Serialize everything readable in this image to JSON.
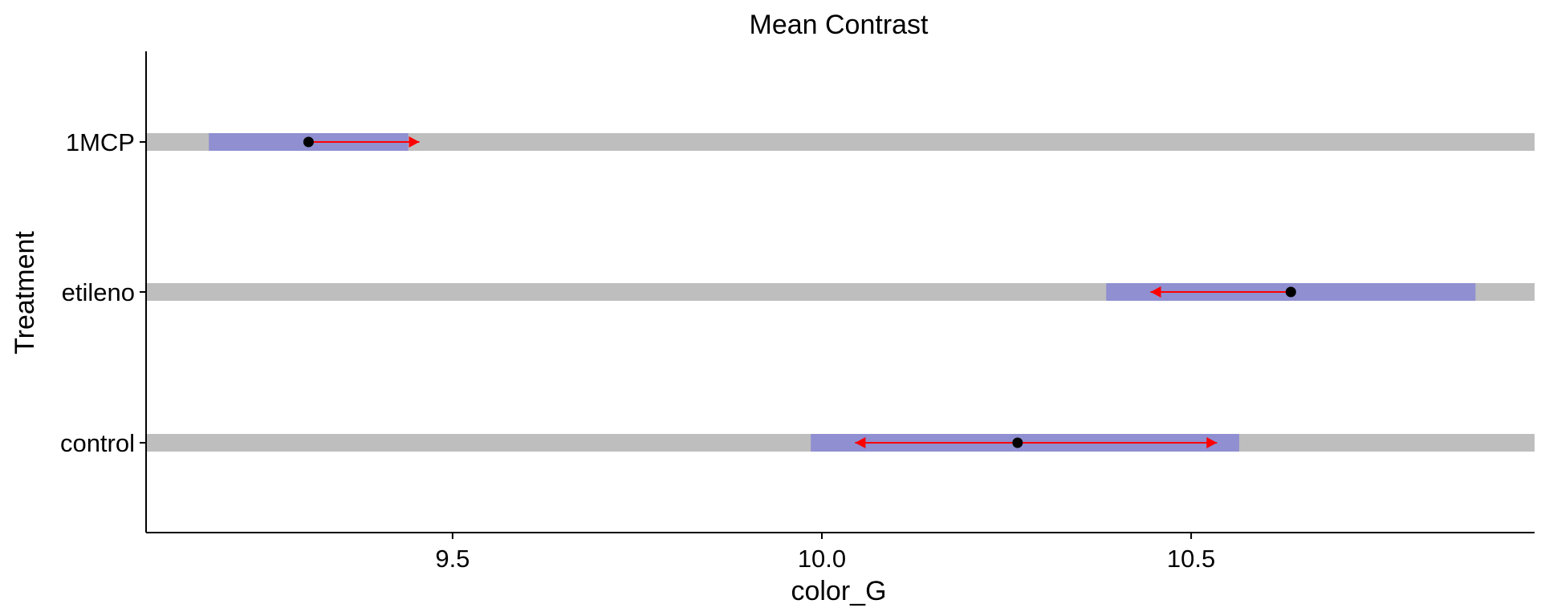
{
  "chart_data": {
    "type": "interval",
    "title": "Mean Contrast",
    "xlabel": "color_G",
    "ylabel": "Treatment",
    "xlim": [
      9.085,
      10.965
    ],
    "xticks": [
      9.5,
      10.0,
      10.5
    ],
    "xtick_labels": [
      "9.5",
      "10.0",
      "10.5"
    ],
    "categories": [
      "1MCP",
      "etileno",
      "control"
    ],
    "grid": false,
    "colors": {
      "band": "#bebebe",
      "ci": "#8f8fd1",
      "arrow": "#ff0000",
      "point": "#000000"
    },
    "series": [
      {
        "category": "1MCP",
        "mean": 9.305,
        "ci_low": 9.17,
        "ci_high": 9.44,
        "arrow_from": 9.305,
        "arrow_to": 9.455
      },
      {
        "category": "etileno",
        "mean": 10.635,
        "ci_low": 10.385,
        "ci_high": 10.885,
        "arrow_from": 10.635,
        "arrow_to": 10.445
      },
      {
        "category": "control",
        "mean": 10.265,
        "ci_low": 9.985,
        "ci_high": 10.565,
        "arrow_from": 10.045,
        "arrow_to": 10.535,
        "double_arrow": true
      }
    ]
  }
}
